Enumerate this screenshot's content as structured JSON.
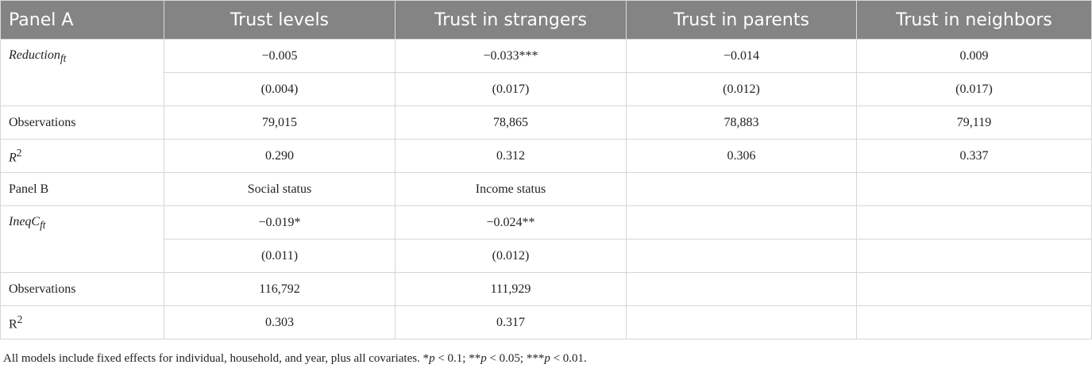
{
  "header": {
    "panel_a": "Panel A",
    "col1": "Trust levels",
    "col2": "Trust in strangers",
    "col3": "Trust in parents",
    "col4": "Trust in neighbors"
  },
  "rows_a": {
    "reduction_label": "Reduction",
    "reduction_sub": "ft",
    "coef": [
      "−0.005",
      "−0.033***",
      "−0.014",
      "0.009"
    ],
    "se": [
      "(0.004)",
      "(0.017)",
      "(0.012)",
      "(0.017)"
    ],
    "obs_label": "Observations",
    "obs": [
      "79,015",
      "78,865",
      "78,883",
      "79,119"
    ],
    "r2_label": "R",
    "r2_sup": "2",
    "r2": [
      "0.290",
      "0.312",
      "0.306",
      "0.337"
    ]
  },
  "rows_b": {
    "panel_b": "Panel B",
    "col1": "Social status",
    "col2": "Income status",
    "ineq_label": "IneqC",
    "ineq_sub": "ft",
    "coef": [
      "−0.019*",
      "−0.024**"
    ],
    "se": [
      "(0.011)",
      "(0.012)"
    ],
    "obs_label": "Observations",
    "obs": [
      "116,792",
      "111,929"
    ],
    "r2_label": "R",
    "r2_sup": "2",
    "r2": [
      "0.303",
      "0.317"
    ]
  },
  "footnote": {
    "text_before": "All models include fixed effects for individual, household, and year, plus all covariates. *",
    "p": "p",
    "t1": " < 0.1; **",
    "t2": " < 0.05; ***",
    "t3": " < 0.01."
  }
}
